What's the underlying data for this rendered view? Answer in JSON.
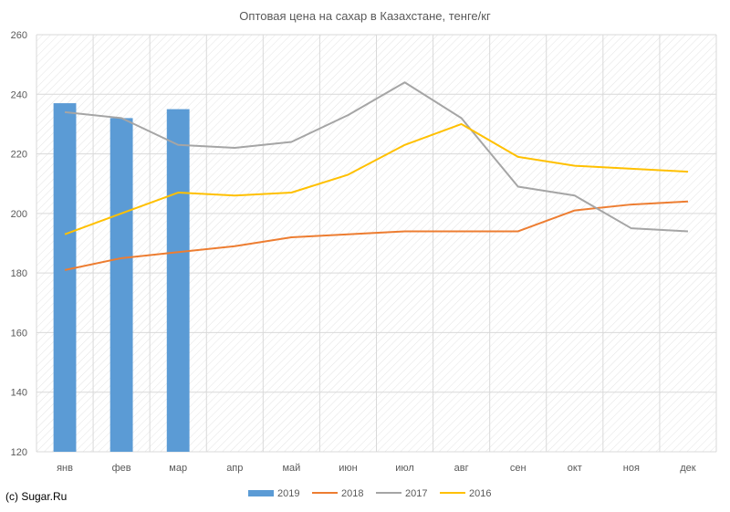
{
  "copyright": "(c) Sugar.Ru",
  "chart_data": {
    "type": "bar+line",
    "title": "Оптовая цена на сахар в Казахстане, тенге/кг",
    "categories": [
      "янв",
      "фев",
      "мар",
      "апр",
      "май",
      "июн",
      "июл",
      "авг",
      "сен",
      "окт",
      "ноя",
      "дек"
    ],
    "ylim": [
      120,
      260
    ],
    "yticks": [
      120,
      140,
      160,
      180,
      200,
      220,
      240,
      260
    ],
    "grid": true,
    "legend_position": "bottom",
    "series": [
      {
        "name": "2019",
        "kind": "bar",
        "color": "#5b9bd5",
        "values": [
          237,
          232,
          235,
          null,
          null,
          null,
          null,
          null,
          null,
          null,
          null,
          null
        ]
      },
      {
        "name": "2018",
        "kind": "line",
        "color": "#ed7d31",
        "values": [
          181,
          185,
          187,
          189,
          192,
          193,
          194,
          194,
          194,
          201,
          203,
          204
        ]
      },
      {
        "name": "2017",
        "kind": "line",
        "color": "#a5a5a5",
        "values": [
          234,
          232,
          223,
          222,
          224,
          233,
          244,
          232,
          209,
          206,
          195,
          194
        ]
      },
      {
        "name": "2016",
        "kind": "line",
        "color": "#ffc000",
        "values": [
          193,
          200,
          207,
          206,
          207,
          213,
          223,
          230,
          219,
          216,
          215,
          214
        ]
      }
    ]
  }
}
